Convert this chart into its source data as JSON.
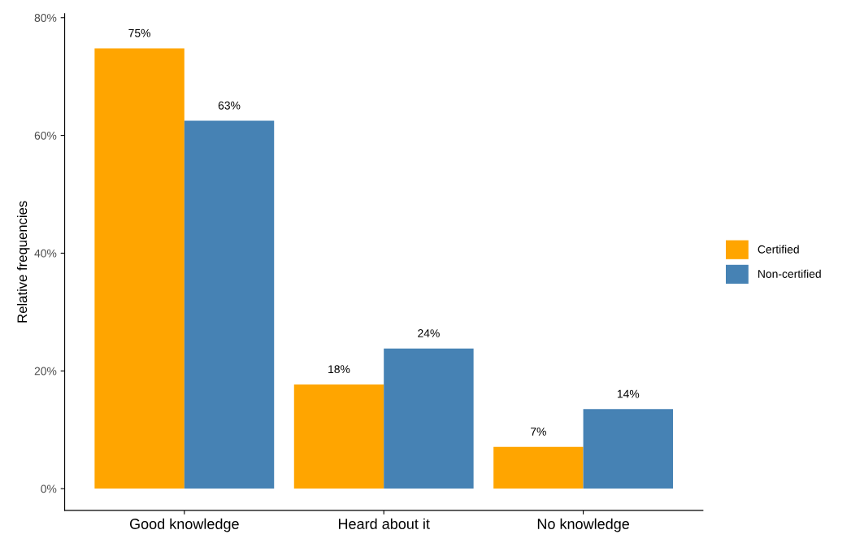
{
  "chart_data": {
    "type": "bar",
    "ylabel": "Relative frequencies",
    "categories": [
      "Good knowledge",
      "Heard about it",
      "No knowledge"
    ],
    "series": [
      {
        "name": "Certified",
        "color": "#ffa500",
        "values": [
          74.8,
          17.7,
          7.1
        ],
        "value_labels": [
          "75%",
          "18%",
          "7%"
        ]
      },
      {
        "name": "Non-certified",
        "color": "#4682b4",
        "values": [
          62.5,
          23.8,
          13.5
        ],
        "value_labels": [
          "63%",
          "24%",
          "14%"
        ]
      }
    ],
    "ylim": [
      -3.7,
      80.7
    ],
    "yticks": [
      {
        "value": 0,
        "label": "0%"
      },
      {
        "value": 20,
        "label": "20%"
      },
      {
        "value": 40,
        "label": "40%"
      },
      {
        "value": 60,
        "label": "60%"
      },
      {
        "value": 80,
        "label": "80%"
      }
    ],
    "grid": false,
    "legend": "right"
  }
}
